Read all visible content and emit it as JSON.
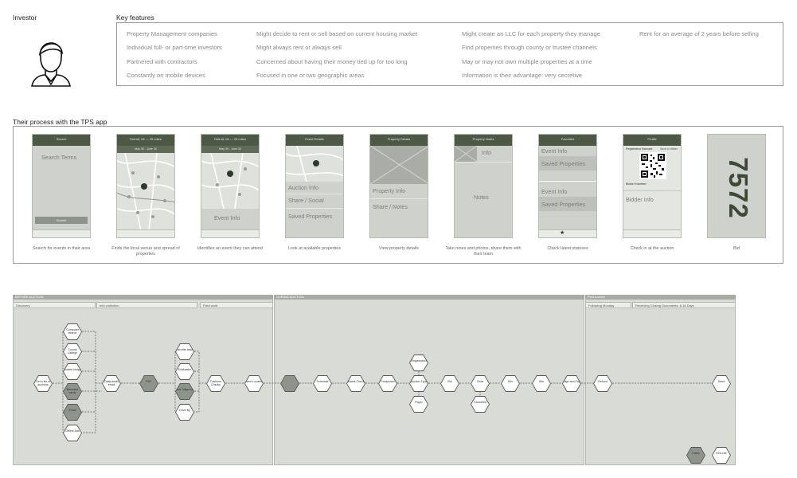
{
  "persona": {
    "title": "Investor"
  },
  "key_features": {
    "title": "Key features",
    "columns": [
      [
        "Property Management companies",
        "Individual full- or part-time investors",
        "Partnered with contractors",
        "Constantly on mobile devices"
      ],
      [
        "Might decide to rent or sell based on current housing market",
        "Might always rent or always sell",
        "Concerned about having their money tied up for too long",
        "Focused in one or two geographic areas"
      ],
      [
        "Might create an LLC for each property they manage",
        "Find properties through county or trustee channels",
        "May or may not own multiple properties at a time",
        "Information is their advantage: very secretive"
      ],
      [
        "Rent for an average of 2 years before selling"
      ]
    ]
  },
  "process": {
    "title": "Their process with the TPS app",
    "screens": [
      {
        "header": "Search",
        "texts": [
          "Search Terms"
        ],
        "button": "Search",
        "caption": "Search for events in their area"
      },
      {
        "header": "Detroit, MI — 25 miles",
        "sub": "May 30 - June 30",
        "texts": [],
        "caption": "Finds the local venue and spread of properties"
      },
      {
        "header": "Detroit, MI — 25 miles",
        "sub": "May 30 - June 30",
        "texts": [
          "Event Info"
        ],
        "caption": "Identifies an event they can attend"
      },
      {
        "header": "Event Details",
        "texts": [
          "Auction Info",
          "Share / Social",
          "Saved Properties"
        ],
        "caption": "Look at available properties"
      },
      {
        "header": "Property Details",
        "texts": [
          "Property Info",
          "Share / Notes"
        ],
        "caption": "View property details"
      },
      {
        "header": "Property Notes",
        "texts": [
          "Info",
          "Notes"
        ],
        "caption": "Take notes and photos, share them with their team"
      },
      {
        "header": "Favorites",
        "texts": [
          "Event Info",
          "Saved Properties",
          "Event Info",
          "Saved Properties"
        ],
        "caption": "Check latest statuses"
      },
      {
        "header": "Profile",
        "texts": [
          "Registration Barcode",
          "Save to Wallet",
          "Bidder Number:",
          "Bidder Info"
        ],
        "caption": "Check in at the auction"
      },
      {
        "header": "",
        "texts": [
          "7572"
        ],
        "caption": "Bid"
      }
    ]
  },
  "journey": {
    "phases": [
      "BEFORE AUCTION",
      "DURING AUCTION",
      "Post Auction"
    ],
    "subphases": [
      "Discovery",
      "Info collection",
      "Field work",
      "Following Monday",
      "Receiving Closing Documents: 6-18 Days"
    ],
    "nodes": [
      "Get a list of auctions",
      "Computer search",
      "County Listings",
      "Trustee Insight",
      "Business cards",
      "Email",
      "Offline Ads",
      "Daily detail email",
      "PDF",
      "Favorite asset",
      "Evaluation",
      "Due Diligence",
      "Drive By",
      "Cashiers Checks",
      "Event Location",
      "Arrive",
      "Schedule",
      "Status Check",
      "Postponed",
      "Registration",
      "Auction Type",
      "Paper",
      "Bid",
      "Clear",
      "Cancelled",
      "Win",
      "Win",
      "Sign and Pay",
      "Refund",
      "Deed",
      "Online",
      "Red Life"
    ]
  },
  "colors": {
    "accent": "#4d5944",
    "panel": "#cfd2cc",
    "lane": "#d9dbd6",
    "hex_dark": "#8e9489"
  }
}
